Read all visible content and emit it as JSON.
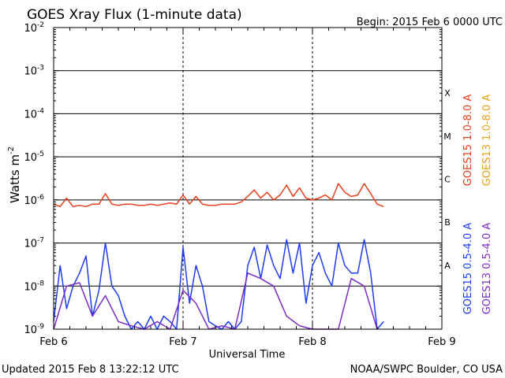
{
  "chart_data": {
    "type": "line",
    "title": "GOES Xray Flux (1-minute data)",
    "begin_label": "Begin:  2015 Feb 6 0000 UTC",
    "xlabel": "Universal Time",
    "ylabel": "Watts m",
    "ylabel_exponent": "-2",
    "y_scale": "log",
    "ylim": [
      1e-09,
      0.01
    ],
    "y_ticks": [
      {
        "exp": -2,
        "mantissa": "10",
        "power": "-2"
      },
      {
        "exp": -3,
        "mantissa": "10",
        "power": "-3"
      },
      {
        "exp": -4,
        "mantissa": "10",
        "power": "-4"
      },
      {
        "exp": -5,
        "mantissa": "10",
        "power": "-5"
      },
      {
        "exp": -6,
        "mantissa": "10",
        "power": "-6"
      },
      {
        "exp": -7,
        "mantissa": "10",
        "power": "-7"
      },
      {
        "exp": -8,
        "mantissa": "10",
        "power": "-8"
      },
      {
        "exp": -9,
        "mantissa": "10",
        "power": "-9"
      }
    ],
    "x_ticks": [
      "Feb 6",
      "Feb 7",
      "Feb 8",
      "Feb 9"
    ],
    "xlim_days": [
      0,
      3
    ],
    "flare_classes": [
      {
        "label": "X",
        "exp": -4
      },
      {
        "label": "M",
        "exp": -5
      },
      {
        "label": "C",
        "exp": -6
      },
      {
        "label": "B",
        "exp": -7
      },
      {
        "label": "A",
        "exp": -8
      }
    ],
    "legend_placement": "right",
    "series": [
      {
        "name": "GOES15 1.0-8.0 A",
        "color": "#e8401c",
        "x_days": [
          0.0,
          0.05,
          0.1,
          0.15,
          0.2,
          0.25,
          0.3,
          0.35,
          0.4,
          0.45,
          0.5,
          0.55,
          0.6,
          0.65,
          0.7,
          0.75,
          0.8,
          0.85,
          0.9,
          0.95,
          1.0,
          1.05,
          1.1,
          1.15,
          1.2,
          1.25,
          1.3,
          1.35,
          1.4,
          1.45,
          1.5,
          1.55,
          1.6,
          1.65,
          1.7,
          1.75,
          1.8,
          1.85,
          1.9,
          1.95,
          2.0,
          2.05,
          2.1,
          2.15,
          2.2,
          2.25,
          2.3,
          2.35,
          2.4,
          2.45,
          2.5,
          2.55
        ],
        "flux": [
          8e-07,
          7e-07,
          1.1e-06,
          7e-07,
          7.5e-07,
          7e-07,
          8e-07,
          8e-07,
          1.4e-06,
          8e-07,
          7.5e-07,
          8e-07,
          8e-07,
          7.5e-07,
          7.5e-07,
          8e-07,
          7.5e-07,
          8e-07,
          8.5e-07,
          8e-07,
          1.3e-06,
          8e-07,
          1.2e-06,
          8e-07,
          7.5e-07,
          7.5e-07,
          8e-07,
          8e-07,
          8e-07,
          9e-07,
          1.2e-06,
          1.7e-06,
          1.1e-06,
          1.5e-06,
          1e-06,
          1.3e-06,
          2.2e-06,
          1.2e-06,
          1.9e-06,
          1.1e-06,
          1e-06,
          1.1e-06,
          1.3e-06,
          1e-06,
          2.4e-06,
          1.5e-06,
          1.2e-06,
          1.3e-06,
          2.4e-06,
          1.4e-06,
          8e-07,
          7e-07
        ]
      },
      {
        "name": "GOES13 1.0-8.0 A",
        "color": "#e8a21c",
        "x_days": [],
        "flux": []
      },
      {
        "name": "GOES15 0.5-4.0 A",
        "color": "#1e3cf0",
        "x_days": [
          0.0,
          0.05,
          0.1,
          0.15,
          0.2,
          0.25,
          0.3,
          0.35,
          0.4,
          0.45,
          0.5,
          0.55,
          0.6,
          0.65,
          0.7,
          0.75,
          0.8,
          0.85,
          0.9,
          0.95,
          1.0,
          1.05,
          1.1,
          1.15,
          1.2,
          1.25,
          1.3,
          1.35,
          1.4,
          1.45,
          1.5,
          1.55,
          1.6,
          1.65,
          1.7,
          1.75,
          1.8,
          1.85,
          1.9,
          1.95,
          2.0,
          2.05,
          2.1,
          2.15,
          2.2,
          2.25,
          2.3,
          2.35,
          2.4,
          2.45,
          2.5,
          2.55
        ],
        "flux": [
          1.5e-09,
          3e-08,
          3e-09,
          1e-08,
          2e-08,
          5e-08,
          2e-09,
          8e-09,
          1e-07,
          1e-08,
          6e-09,
          2e-09,
          1e-09,
          1.5e-09,
          1e-09,
          2e-09,
          1e-09,
          2e-09,
          1.5e-09,
          1e-09,
          8e-08,
          4e-09,
          3e-08,
          1e-08,
          1.5e-09,
          1.2e-09,
          1e-09,
          1.5e-09,
          1e-09,
          1.5e-09,
          3e-08,
          8e-08,
          1.5e-08,
          9e-08,
          3e-08,
          1.5e-08,
          1.2e-07,
          2e-08,
          1e-07,
          4e-09,
          3e-08,
          6e-08,
          2e-08,
          1e-08,
          1e-07,
          3e-08,
          2e-08,
          2e-08,
          1.2e-07,
          2e-08,
          1e-09,
          1.5e-09
        ]
      },
      {
        "name": "GOES13 0.5-4.0 A",
        "color": "#7a2cc8",
        "x_days": [
          0.0,
          0.1,
          0.2,
          0.3,
          0.4,
          0.5,
          0.6,
          0.7,
          0.8,
          0.9,
          1.0,
          1.1,
          1.2,
          1.3,
          1.4,
          1.5,
          1.6,
          1.7,
          1.8,
          1.9,
          2.0,
          2.1,
          2.2,
          2.3,
          2.4,
          2.5
        ],
        "flux": [
          1e-09,
          1e-08,
          1.2e-08,
          2e-09,
          6e-09,
          1.5e-09,
          1.2e-09,
          1e-09,
          1.5e-09,
          1e-09,
          8e-09,
          4e-09,
          1e-09,
          1.2e-09,
          1e-09,
          2e-08,
          1.5e-08,
          1e-08,
          2e-09,
          1.2e-09,
          1e-09,
          1e-09,
          1e-09,
          1.5e-08,
          1e-08,
          1e-09
        ]
      }
    ]
  },
  "footer": {
    "updated": "Updated 2015 Feb  8 13:22:12 UTC",
    "source": "NOAA/SWPC Boulder, CO USA"
  }
}
